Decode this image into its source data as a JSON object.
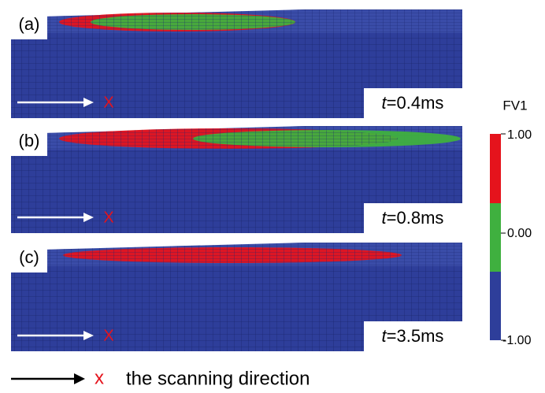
{
  "panels": [
    {
      "label": "(a)",
      "time_symbol": "t",
      "time_text": "=0.4ms",
      "marker": "X"
    },
    {
      "label": "(b)",
      "time_symbol": "t",
      "time_text": "=0.8ms",
      "marker": "X"
    },
    {
      "label": "(c)",
      "time_symbol": "t",
      "time_text": "=3.5ms",
      "marker": "X"
    }
  ],
  "colorbar": {
    "title": "FV1",
    "labels": [
      "1.00",
      "0.00",
      "-1.00"
    ]
  },
  "legend": {
    "marker": "x",
    "text": "the scanning direction"
  }
}
